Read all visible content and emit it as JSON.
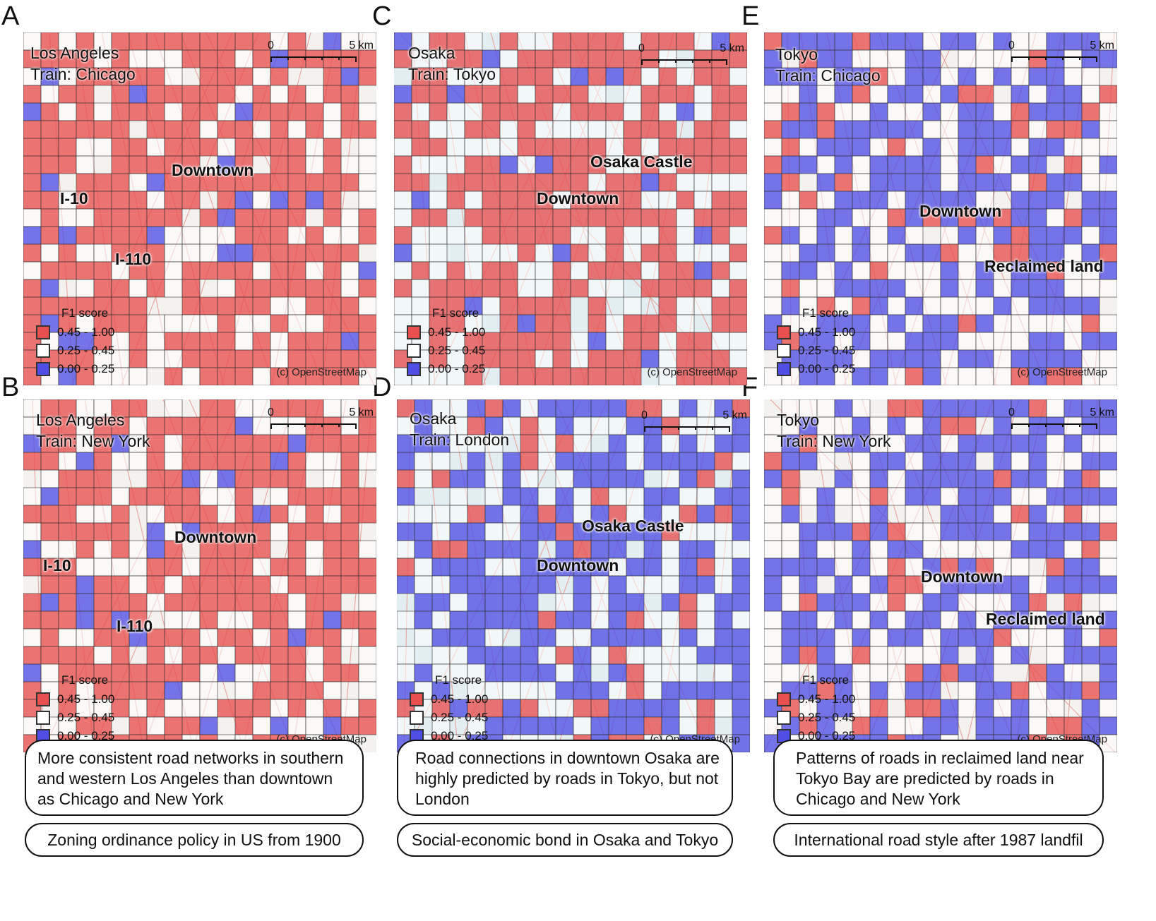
{
  "colors": {
    "high": "#e8504f",
    "mid": "#ffffff",
    "low": "#4f4fe6",
    "grid": "#333333"
  },
  "legend": {
    "title": "F1 score",
    "high": "0.45 - 1.00",
    "mid": "0.25 - 0.45",
    "low": "0.00 - 0.25"
  },
  "scale": {
    "zero": "0",
    "five": "5 km"
  },
  "credit": "(c) OpenStreetMap",
  "panels": {
    "A": {
      "letter": "A",
      "city": "Los Angeles",
      "train": "Train: Chicago",
      "labels": [
        "Downtown",
        "I-10",
        "I-110"
      ],
      "dominant": "high"
    },
    "B": {
      "letter": "B",
      "city": "Los Angeles",
      "train": "Train: New York",
      "labels": [
        "Downtown",
        "I-10",
        "I-110"
      ],
      "dominant": "high"
    },
    "C": {
      "letter": "C",
      "city": "Osaka",
      "train": "Train: Tokyo",
      "labels": [
        "Osaka Castle",
        "Downtown"
      ],
      "dominant": "high"
    },
    "D": {
      "letter": "D",
      "city": "Osaka",
      "train": "Train: London",
      "labels": [
        "Osaka Castle",
        "Downtown"
      ],
      "dominant": "low"
    },
    "E": {
      "letter": "E",
      "city": "Tokyo",
      "train": "Train: Chicago",
      "labels": [
        "Downtown",
        "Reclaimed land"
      ],
      "dominant": "low"
    },
    "F": {
      "letter": "F",
      "city": "Tokyo",
      "train": "Train: New York",
      "labels": [
        "Downtown",
        "Reclaimed land"
      ],
      "dominant": "low"
    }
  },
  "findings": {
    "la": "More consistent road networks in southern and western Los Angeles than downtown as Chicago and New York",
    "osaka": "Road connections in downtown Osaka are highly predicted by roads in Tokyo, but not London",
    "tokyo": "Patterns of roads in reclaimed land near Tokyo Bay are predicted by roads in Chicago and New York"
  },
  "causes": {
    "la": "Zoning ordinance policy in US from 1900",
    "osaka": "Social-economic bond in Osaka and Tokyo",
    "tokyo": "International road style after 1987 landfil"
  }
}
